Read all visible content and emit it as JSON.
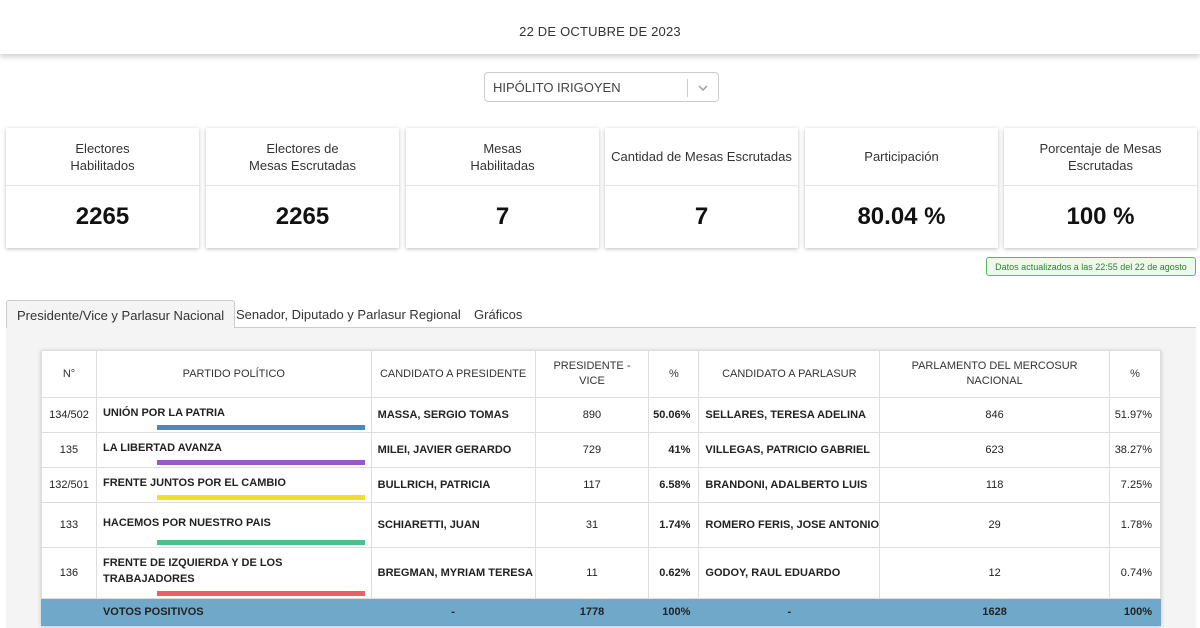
{
  "header": {
    "date": "22 DE OCTUBRE DE 2023"
  },
  "location_select": {
    "value": "HIPÓLITO IRIGOYEN",
    "icon": "chevron-down-icon"
  },
  "cards": [
    {
      "label": "Electores\nHabilitados",
      "value": "2265"
    },
    {
      "label": "Electores de\nMesas Escrutadas",
      "value": "2265"
    },
    {
      "label": "Mesas\nHabilitadas",
      "value": "7"
    },
    {
      "label": "Cantidad de Mesas Escrutadas",
      "value": "7"
    },
    {
      "label": "Participación",
      "value": "80.04 %"
    },
    {
      "label": "Porcentaje de Mesas Escrutadas",
      "value": "100 %"
    }
  ],
  "updated_badge": "Datos actualizados a las 22:55 del 22 de agosto",
  "tabs": [
    {
      "label": "Presidente/Vice y Parlasur Nacional",
      "active": true
    },
    {
      "label": "Senador, Diputado y Parlasur Regional",
      "active": false
    },
    {
      "label": "Gráficos",
      "active": false
    }
  ],
  "table": {
    "headers": {
      "num": "N°",
      "party": "PARTIDO POLÍTICO",
      "cand_pres": "CANDIDATO A PRESIDENTE",
      "pres_vice": "PRESIDENTE -\nVICE",
      "pct1": "%",
      "cand_parl": "CANDIDATO A PARLASUR",
      "parl": "PARLAMENTO DEL MERCOSUR\nNACIONAL",
      "pct2": "%"
    },
    "rows": [
      {
        "num": "134/502",
        "party": "UNIÓN POR LA PATRIA",
        "color": "#4a86c8",
        "cand_pres": "MASSA, SERGIO TOMAS",
        "pres_votes": "890",
        "pres_pct": "50.06%",
        "cand_parl": "SELLARES, TERESA ADELINA",
        "parl_votes": "846",
        "parl_pct": "51.97%"
      },
      {
        "num": "135",
        "party": "LA LIBERTAD AVANZA",
        "color": "#9b59c8",
        "cand_pres": "MILEI, JAVIER GERARDO",
        "pres_votes": "729",
        "pres_pct": "41%",
        "cand_parl": "VILLEGAS, PATRICIO GABRIEL",
        "parl_votes": "623",
        "parl_pct": "38.27%"
      },
      {
        "num": "132/501",
        "party": "FRENTE JUNTOS POR EL CAMBIO",
        "color": "#f4dc2c",
        "cand_pres": "BULLRICH, PATRICIA",
        "pres_votes": "117",
        "pres_pct": "6.58%",
        "cand_parl": "BRANDONI, ADALBERTO LUIS",
        "parl_votes": "118",
        "parl_pct": "7.25%"
      },
      {
        "num": "133",
        "party": "HACEMOS POR NUESTRO PAIS",
        "color": "#4cbf8a",
        "cand_pres": "SCHIARETTI, JUAN",
        "pres_votes": "31",
        "pres_pct": "1.74%",
        "cand_parl": "ROMERO FERIS, JOSE ANTONIO",
        "parl_votes": "29",
        "parl_pct": "1.78%"
      },
      {
        "num": "136",
        "party": "FRENTE DE IZQUIERDA Y DE LOS TRABAJADORES",
        "color": "#e8606a",
        "cand_pres": "BREGMAN, MYRIAM TERESA",
        "pres_votes": "11",
        "pres_pct": "0.62%",
        "cand_parl": "GODOY, RAUL EDUARDO",
        "parl_votes": "12",
        "parl_pct": "0.74%"
      }
    ],
    "footer": {
      "label": "VOTOS POSITIVOS",
      "cand_pres": "-",
      "pres_votes": "1778",
      "pres_pct": "100%",
      "cand_parl": "-",
      "parl_votes": "1628",
      "parl_pct": "100%"
    }
  }
}
